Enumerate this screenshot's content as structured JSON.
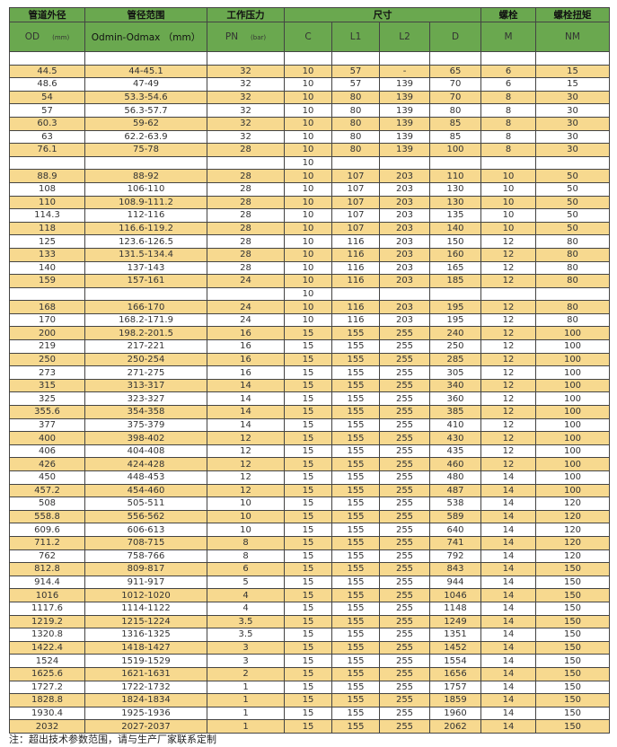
{
  "header": {
    "group": [
      "管道外径",
      "管径范围",
      "工作压力",
      "尺寸",
      "螺栓",
      "螺栓扭矩"
    ],
    "sub": {
      "od": "OD",
      "od_unit": "(mm)",
      "range": "Odmin-Odmax （mm）",
      "pn": "PN",
      "pn_unit": "(bar)",
      "c": "C",
      "l1": "L1",
      "l2": "L2",
      "d": "D",
      "m": "M",
      "nm": "NM"
    }
  },
  "colors": {
    "header_green": "#6aa84f",
    "stripe_yellow": "#f7d98f"
  },
  "rows": [
    [
      "",
      "",
      "",
      "",
      "",
      "",
      "",
      "",
      ""
    ],
    [
      "44.5",
      "44-45.1",
      "32",
      "10",
      "57",
      "-",
      "65",
      "6",
      "15"
    ],
    [
      "48.6",
      "47-49",
      "32",
      "10",
      "57",
      "139",
      "70",
      "6",
      "15"
    ],
    [
      "54",
      "53.3-54.6",
      "32",
      "10",
      "80",
      "139",
      "70",
      "8",
      "30"
    ],
    [
      "57",
      "56.3-57.7",
      "32",
      "10",
      "80",
      "139",
      "80",
      "8",
      "30"
    ],
    [
      "60.3",
      "59-62",
      "32",
      "10",
      "80",
      "139",
      "85",
      "8",
      "30"
    ],
    [
      "63",
      "62.2-63.9",
      "32",
      "10",
      "80",
      "139",
      "85",
      "8",
      "30"
    ],
    [
      "76.1",
      "75-78",
      "28",
      "10",
      "80",
      "139",
      "100",
      "8",
      "30"
    ],
    [
      "",
      "",
      "",
      "10",
      "",
      "",
      "",
      "",
      ""
    ],
    [
      "88.9",
      "88-92",
      "28",
      "10",
      "107",
      "203",
      "110",
      "10",
      "50"
    ],
    [
      "108",
      "106-110",
      "28",
      "10",
      "107",
      "203",
      "130",
      "10",
      "50"
    ],
    [
      "110",
      "108.9-111.2",
      "28",
      "10",
      "107",
      "203",
      "130",
      "10",
      "50"
    ],
    [
      "114.3",
      "112-116",
      "28",
      "10",
      "107",
      "203",
      "135",
      "10",
      "50"
    ],
    [
      "118",
      "116.6-119.2",
      "28",
      "10",
      "107",
      "203",
      "140",
      "10",
      "50"
    ],
    [
      "125",
      "123.6-126.5",
      "28",
      "10",
      "116",
      "203",
      "150",
      "12",
      "80"
    ],
    [
      "133",
      "131.5-134.4",
      "28",
      "10",
      "116",
      "203",
      "160",
      "12",
      "80"
    ],
    [
      "140",
      "137-143",
      "28",
      "10",
      "116",
      "203",
      "165",
      "12",
      "80"
    ],
    [
      "159",
      "157-161",
      "24",
      "10",
      "116",
      "203",
      "185",
      "12",
      "80"
    ],
    [
      "",
      "",
      "",
      "10",
      "",
      "",
      "",
      "",
      ""
    ],
    [
      "168",
      "166-170",
      "24",
      "10",
      "116",
      "203",
      "195",
      "12",
      "80"
    ],
    [
      "170",
      "168.2-171.9",
      "24",
      "10",
      "116",
      "203",
      "195",
      "12",
      "80"
    ],
    [
      "200",
      "198.2-201.5",
      "16",
      "15",
      "155",
      "255",
      "240",
      "12",
      "100"
    ],
    [
      "219",
      "217-221",
      "16",
      "15",
      "155",
      "255",
      "250",
      "12",
      "100"
    ],
    [
      "250",
      "250-254",
      "16",
      "15",
      "155",
      "255",
      "285",
      "12",
      "100"
    ],
    [
      "273",
      "271-275",
      "16",
      "15",
      "155",
      "255",
      "305",
      "12",
      "100"
    ],
    [
      "315",
      "313-317",
      "14",
      "15",
      "155",
      "255",
      "340",
      "12",
      "100"
    ],
    [
      "325",
      "323-327",
      "14",
      "15",
      "155",
      "255",
      "360",
      "12",
      "100"
    ],
    [
      "355.6",
      "354-358",
      "14",
      "15",
      "155",
      "255",
      "385",
      "12",
      "100"
    ],
    [
      "377",
      "375-379",
      "14",
      "15",
      "155",
      "255",
      "410",
      "12",
      "100"
    ],
    [
      "400",
      "398-402",
      "12",
      "15",
      "155",
      "255",
      "430",
      "12",
      "100"
    ],
    [
      "406",
      "404-408",
      "12",
      "15",
      "155",
      "255",
      "435",
      "12",
      "100"
    ],
    [
      "426",
      "424-428",
      "12",
      "15",
      "155",
      "255",
      "460",
      "12",
      "100"
    ],
    [
      "450",
      "448-453",
      "12",
      "15",
      "155",
      "255",
      "480",
      "14",
      "100"
    ],
    [
      "457.2",
      "454-460",
      "12",
      "15",
      "155",
      "255",
      "487",
      "14",
      "100"
    ],
    [
      "508",
      "505-511",
      "10",
      "15",
      "155",
      "255",
      "538",
      "14",
      "120"
    ],
    [
      "558.8",
      "556-562",
      "10",
      "15",
      "155",
      "255",
      "589",
      "14",
      "120"
    ],
    [
      "609.6",
      "606-613",
      "10",
      "15",
      "155",
      "255",
      "640",
      "14",
      "120"
    ],
    [
      "711.2",
      "708-715",
      "8",
      "15",
      "155",
      "255",
      "741",
      "14",
      "120"
    ],
    [
      "762",
      "758-766",
      "8",
      "15",
      "155",
      "255",
      "792",
      "14",
      "120"
    ],
    [
      "812.8",
      "809-817",
      "6",
      "15",
      "155",
      "255",
      "843",
      "14",
      "150"
    ],
    [
      "914.4",
      "911-917",
      "5",
      "15",
      "155",
      "255",
      "944",
      "14",
      "150"
    ],
    [
      "1016",
      "1012-1020",
      "4",
      "15",
      "155",
      "255",
      "1046",
      "14",
      "150"
    ],
    [
      "1117.6",
      "1114-1122",
      "4",
      "15",
      "155",
      "255",
      "1148",
      "14",
      "150"
    ],
    [
      "1219.2",
      "1215-1224",
      "3.5",
      "15",
      "155",
      "255",
      "1249",
      "14",
      "150"
    ],
    [
      "1320.8",
      "1316-1325",
      "3.5",
      "15",
      "155",
      "255",
      "1351",
      "14",
      "150"
    ],
    [
      "1422.4",
      "1418-1427",
      "3",
      "15",
      "155",
      "255",
      "1452",
      "14",
      "150"
    ],
    [
      "1524",
      "1519-1529",
      "3",
      "15",
      "155",
      "255",
      "1554",
      "14",
      "150"
    ],
    [
      "1625.6",
      "1621-1631",
      "2",
      "15",
      "155",
      "255",
      "1656",
      "14",
      "150"
    ],
    [
      "1727.2",
      "1722-1732",
      "1",
      "15",
      "155",
      "255",
      "1757",
      "14",
      "150"
    ],
    [
      "1828.8",
      "1824-1834",
      "1",
      "15",
      "155",
      "255",
      "1859",
      "14",
      "150"
    ],
    [
      "1930.4",
      "1925-1936",
      "1",
      "15",
      "155",
      "255",
      "1960",
      "14",
      "150"
    ],
    [
      "2032",
      "2027-2037",
      "1",
      "15",
      "155",
      "255",
      "2062",
      "14",
      "150"
    ]
  ],
  "note": "注：超出技术参数范围，请与生产厂家联系定制"
}
